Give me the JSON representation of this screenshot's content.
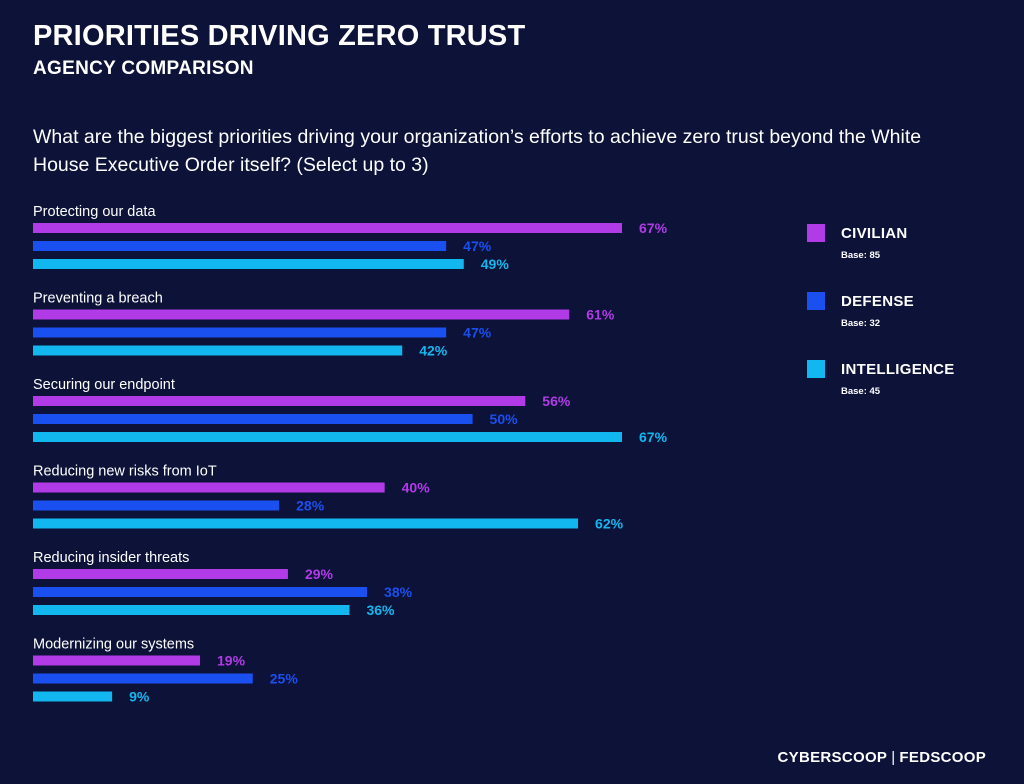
{
  "title": "PRIORITIES DRIVING ZERO TRUST",
  "subtitle": "AGENCY COMPARISON",
  "question": "What are the biggest priorities driving your organization’s efforts to achieve zero trust beyond the White House Executive Order itself? (Select up to 3)",
  "footer": {
    "brand1": "CYBERSCOOP",
    "separator": "|",
    "brand2": "FEDSCOOP"
  },
  "colors": {
    "background": "#0d1238",
    "civilian": "#b13be6",
    "defense": "#1a4ff0",
    "intelligence": "#13b7f0"
  },
  "chart_data": {
    "type": "bar",
    "orientation": "horizontal",
    "categories": [
      "Protecting our data",
      "Preventing a breach",
      "Securing our endpoint",
      "Reducing new risks from IoT",
      "Reducing insider threats",
      "Modernizing our systems"
    ],
    "series": [
      {
        "name": "CIVILIAN",
        "base": "Base: 85",
        "color": "#b13be6",
        "values": [
          67,
          61,
          56,
          40,
          29,
          19
        ]
      },
      {
        "name": "DEFENSE",
        "base": "Base: 32",
        "color": "#1a4ff0",
        "values": [
          47,
          47,
          50,
          28,
          38,
          25
        ]
      },
      {
        "name": "INTELLIGENCE",
        "base": "Base: 45",
        "color": "#13b7f0",
        "values": [
          49,
          42,
          67,
          62,
          36,
          9
        ]
      }
    ],
    "value_suffix": "%",
    "xlim": [
      0,
      67
    ],
    "grid": false,
    "legend_position": "right"
  }
}
